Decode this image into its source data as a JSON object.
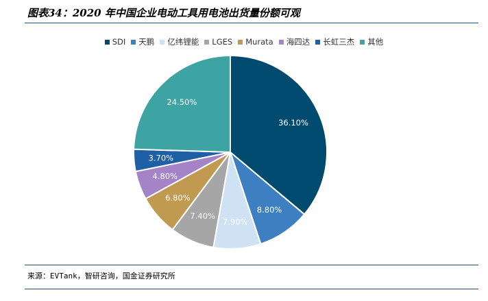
{
  "figure": {
    "title": "图表34：2020 年中国企业电动工具用电池出货量份额可观",
    "source": "来源：EVTank，智研咨询，国金证券研究所"
  },
  "chart_data": {
    "type": "pie",
    "title": "",
    "legend_position": "top",
    "slices": [
      {
        "name": "SDI",
        "value": 36.1,
        "label": "36.10%",
        "color": "#004a6f"
      },
      {
        "name": "天鹏",
        "value": 8.8,
        "label": "8.80%",
        "color": "#3e7fc1"
      },
      {
        "name": "亿纬锂能",
        "value": 7.9,
        "label": "7.90%",
        "color": "#cfe2f3"
      },
      {
        "name": "LGES",
        "value": 7.4,
        "label": "7.40%",
        "color": "#a6a6a6"
      },
      {
        "name": "Murata",
        "value": 6.8,
        "label": "6.80%",
        "color": "#c19a52"
      },
      {
        "name": "海四达",
        "value": 4.8,
        "label": "4.80%",
        "color": "#a483c7"
      },
      {
        "name": "长虹三杰",
        "value": 3.7,
        "label": "3.70%",
        "color": "#1f5fa5"
      },
      {
        "name": "其他",
        "value": 24.5,
        "label": "24.50%",
        "color": "#3ea3a3"
      }
    ]
  }
}
